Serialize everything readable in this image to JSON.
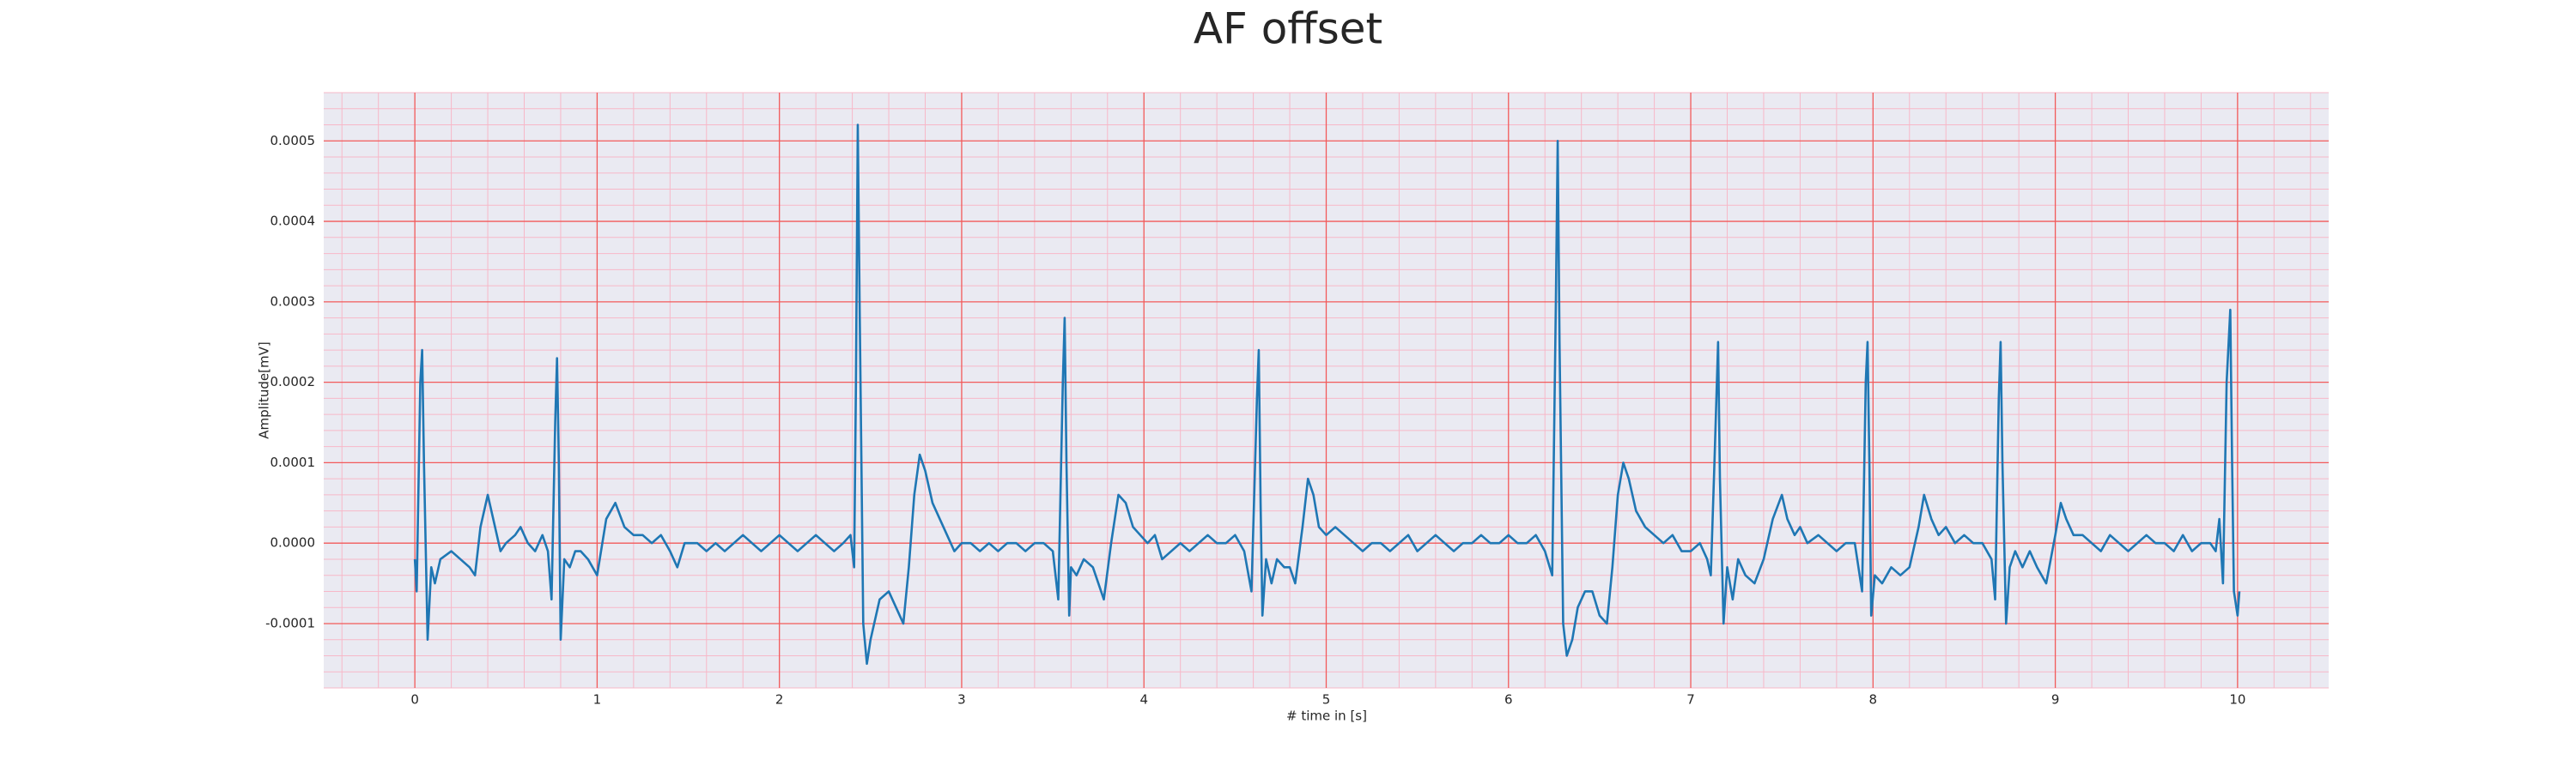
{
  "chart_data": {
    "type": "line",
    "title": "AF offset",
    "x_label": "# time in [s]",
    "y_label": "Amplitude[mV]",
    "xlim": [
      -0.5,
      10.5
    ],
    "xticks": [
      0,
      1,
      2,
      3,
      4,
      5,
      6,
      7,
      8,
      9,
      10
    ],
    "ylim": [
      -0.00018,
      0.00056
    ],
    "yticks": [
      -0.0001,
      {
        "value": 0,
        "label": "0.0000"
      },
      0.0001,
      0.0002,
      0.0003,
      0.0004,
      0.0005
    ],
    "grid": true,
    "minor_grid": true,
    "minor_divisions": 5,
    "background": "#eaeaf2",
    "grid_color": "#f25a5a",
    "minor_grid_color": "#f7b8c8",
    "color": "#1f77b4",
    "x": [
      0,
      0.01,
      0.03,
      0.04,
      0.05,
      0.07,
      0.09,
      0.11,
      0.14,
      0.2,
      0.25,
      0.3,
      0.33,
      0.36,
      0.4,
      0.43,
      0.47,
      0.5,
      0.55,
      0.58,
      0.62,
      0.66,
      0.7,
      0.73,
      0.75,
      0.77,
      0.78,
      0.79,
      0.8,
      0.82,
      0.85,
      0.88,
      0.91,
      0.95,
      1.0,
      1.05,
      1.1,
      1.15,
      1.2,
      1.25,
      1.3,
      1.35,
      1.4,
      1.44,
      1.48,
      1.55,
      1.6,
      1.65,
      1.7,
      1.75,
      1.8,
      1.85,
      1.9,
      1.95,
      2.0,
      2.05,
      2.1,
      2.15,
      2.2,
      2.25,
      2.3,
      2.35,
      2.39,
      2.41,
      2.42,
      2.43,
      2.44,
      2.46,
      2.48,
      2.5,
      2.55,
      2.6,
      2.64,
      2.68,
      2.71,
      2.74,
      2.77,
      2.8,
      2.84,
      2.88,
      2.92,
      2.96,
      3.0,
      3.05,
      3.1,
      3.15,
      3.2,
      3.25,
      3.3,
      3.35,
      3.4,
      3.45,
      3.5,
      3.53,
      3.555,
      3.565,
      3.575,
      3.59,
      3.6,
      3.63,
      3.67,
      3.72,
      3.78,
      3.82,
      3.86,
      3.9,
      3.94,
      3.98,
      4.02,
      4.06,
      4.1,
      4.15,
      4.2,
      4.25,
      4.3,
      4.35,
      4.4,
      4.45,
      4.5,
      4.55,
      4.59,
      4.62,
      4.63,
      4.64,
      4.65,
      4.67,
      4.7,
      4.73,
      4.77,
      4.8,
      4.83,
      4.87,
      4.9,
      4.93,
      4.96,
      5.0,
      5.05,
      5.1,
      5.15,
      5.2,
      5.25,
      5.3,
      5.35,
      5.4,
      5.45,
      5.5,
      5.55,
      5.6,
      5.65,
      5.7,
      5.75,
      5.8,
      5.85,
      5.9,
      5.95,
      6.0,
      6.05,
      6.1,
      6.15,
      6.2,
      6.24,
      6.26,
      6.27,
      6.28,
      6.3,
      6.32,
      6.35,
      6.38,
      6.42,
      6.46,
      6.5,
      6.54,
      6.57,
      6.6,
      6.63,
      6.66,
      6.7,
      6.75,
      6.8,
      6.85,
      6.9,
      6.95,
      7.0,
      7.05,
      7.09,
      7.11,
      7.13,
      7.15,
      7.16,
      7.18,
      7.2,
      7.23,
      7.26,
      7.3,
      7.35,
      7.4,
      7.45,
      7.5,
      7.53,
      7.57,
      7.6,
      7.64,
      7.7,
      7.75,
      7.8,
      7.85,
      7.9,
      7.94,
      7.96,
      7.97,
      7.98,
      7.99,
      8.01,
      8.05,
      8.1,
      8.15,
      8.2,
      8.25,
      8.28,
      8.32,
      8.36,
      8.4,
      8.45,
      8.5,
      8.55,
      8.6,
      8.65,
      8.67,
      8.69,
      8.7,
      8.71,
      8.73,
      8.75,
      8.78,
      8.82,
      8.86,
      8.9,
      8.95,
      9.0,
      9.03,
      9.06,
      9.1,
      9.15,
      9.2,
      9.25,
      9.3,
      9.35,
      9.4,
      9.45,
      9.5,
      9.55,
      9.6,
      9.65,
      9.7,
      9.75,
      9.8,
      9.85,
      9.88,
      9.9,
      9.92,
      9.94,
      9.96,
      9.97,
      9.98,
      10.0,
      10.01
    ],
    "values": [
      -2e-05,
      -6e-05,
      0.0002,
      0.00024,
      0.0001,
      -0.00012,
      -3e-05,
      -5e-05,
      -2e-05,
      -1e-05,
      -2e-05,
      -3e-05,
      -4e-05,
      2e-05,
      6e-05,
      3e-05,
      -1e-05,
      0,
      1e-05,
      2e-05,
      0,
      -1e-05,
      1e-05,
      -1e-05,
      -7e-05,
      0.00015,
      0.00023,
      0.0001,
      -0.00012,
      -2e-05,
      -3e-05,
      -1e-05,
      -1e-05,
      -2e-05,
      -4e-05,
      3e-05,
      5e-05,
      2e-05,
      1e-05,
      1e-05,
      0,
      1e-05,
      -1e-05,
      -3e-05,
      0,
      0,
      -1e-05,
      0,
      -1e-05,
      0,
      1e-05,
      0,
      -1e-05,
      0,
      1e-05,
      0,
      -1e-05,
      0,
      1e-05,
      0,
      -1e-05,
      0,
      1e-05,
      -3e-05,
      0.0002,
      0.00052,
      0.0003,
      -0.0001,
      -0.00015,
      -0.00012,
      -7e-05,
      -6e-05,
      -8e-05,
      -0.0001,
      -3e-05,
      6e-05,
      0.00011,
      9e-05,
      5e-05,
      3e-05,
      1e-05,
      -1e-05,
      0,
      0,
      -1e-05,
      0,
      -1e-05,
      0,
      0,
      -1e-05,
      0,
      0,
      -1e-05,
      -7e-05,
      0.0002,
      0.00028,
      0.0001,
      -9e-05,
      -3e-05,
      -4e-05,
      -2e-05,
      -3e-05,
      -7e-05,
      0,
      6e-05,
      5e-05,
      2e-05,
      1e-05,
      0,
      1e-05,
      -2e-05,
      -1e-05,
      0,
      -1e-05,
      0,
      1e-05,
      0,
      0,
      1e-05,
      -1e-05,
      -6e-05,
      0.00018,
      0.00024,
      5e-05,
      -9e-05,
      -2e-05,
      -5e-05,
      -2e-05,
      -3e-05,
      -3e-05,
      -5e-05,
      2e-05,
      8e-05,
      6e-05,
      2e-05,
      1e-05,
      2e-05,
      1e-05,
      0,
      -1e-05,
      0,
      0,
      -1e-05,
      0,
      1e-05,
      -1e-05,
      0,
      1e-05,
      0,
      -1e-05,
      0,
      0,
      1e-05,
      0,
      0,
      1e-05,
      0,
      0,
      1e-05,
      -1e-05,
      -4e-05,
      0.0003,
      0.0005,
      0.00025,
      -0.0001,
      -0.00014,
      -0.00012,
      -8e-05,
      -6e-05,
      -6e-05,
      -9e-05,
      -0.0001,
      -3e-05,
      6e-05,
      0.0001,
      8e-05,
      4e-05,
      2e-05,
      1e-05,
      0,
      1e-05,
      -1e-05,
      -1e-05,
      0,
      -2e-05,
      -4e-05,
      0.0001,
      0.00025,
      8e-05,
      -0.0001,
      -3e-05,
      -7e-05,
      -2e-05,
      -4e-05,
      -5e-05,
      -2e-05,
      3e-05,
      6e-05,
      3e-05,
      1e-05,
      2e-05,
      0,
      1e-05,
      0,
      -1e-05,
      0,
      0,
      -6e-05,
      0.0002,
      0.00025,
      0.0001,
      -9e-05,
      -4e-05,
      -5e-05,
      -3e-05,
      -4e-05,
      -3e-05,
      2e-05,
      6e-05,
      3e-05,
      1e-05,
      2e-05,
      0,
      1e-05,
      0,
      0,
      -2e-05,
      -7e-05,
      0.00018,
      0.00025,
      0.0001,
      -0.0001,
      -3e-05,
      -1e-05,
      -3e-05,
      -1e-05,
      -3e-05,
      -5e-05,
      1e-05,
      5e-05,
      3e-05,
      1e-05,
      1e-05,
      0,
      -1e-05,
      1e-05,
      0,
      -1e-05,
      0,
      1e-05,
      0,
      0,
      -1e-05,
      1e-05,
      -1e-05,
      0,
      0,
      -1e-05,
      3e-05,
      -5e-05,
      0.0002,
      0.00029,
      0.0001,
      -6e-05,
      -9e-05,
      -6e-05
    ]
  }
}
